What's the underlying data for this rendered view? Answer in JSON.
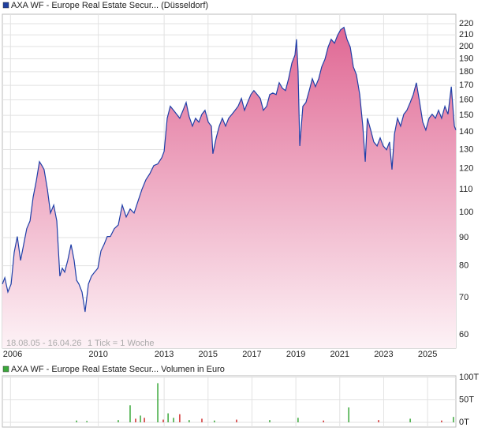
{
  "chart_data": [
    {
      "type": "line",
      "title": "AXA WF - Europe Real Estate Secur... (Düsseldorf)",
      "legend_color": "#1f3f9f",
      "date_range": "18.08.05 - 16.04.26",
      "tick_info": "1 Tick = 1 Woche",
      "log_scale": true,
      "grid": true,
      "color": "#1f3fa8",
      "fill_top": "#e06894",
      "fill_bottom": "#fdf2f6",
      "xlim": [
        2005.63,
        2026.29
      ],
      "xticks": [
        {
          "value": 2006,
          "label": "2006"
        },
        {
          "value": 2010,
          "label": "2010"
        },
        {
          "value": 2013,
          "label": "2013"
        },
        {
          "value": 2015,
          "label": "2015"
        },
        {
          "value": 2017,
          "label": "2017"
        },
        {
          "value": 2019,
          "label": "2019"
        },
        {
          "value": 2021,
          "label": "2021"
        },
        {
          "value": 2023,
          "label": "2023"
        },
        {
          "value": 2025,
          "label": "2025"
        }
      ],
      "ylim": [
        56.7,
        228.9
      ],
      "yticks": [
        60,
        70,
        80,
        90,
        100,
        110,
        120,
        130,
        140,
        150,
        160,
        170,
        180,
        190,
        200,
        210,
        220
      ],
      "x": [
        2005.63,
        2005.74,
        2005.88,
        2006.03,
        2006.17,
        2006.31,
        2006.46,
        2006.6,
        2006.74,
        2006.89,
        2007.03,
        2007.17,
        2007.32,
        2007.43,
        2007.53,
        2007.68,
        2007.82,
        2007.97,
        2008.11,
        2008.25,
        2008.36,
        2008.47,
        2008.61,
        2008.76,
        2008.9,
        2009.01,
        2009.12,
        2009.26,
        2009.4,
        2009.55,
        2009.69,
        2009.83,
        2009.98,
        2010.12,
        2010.26,
        2010.41,
        2010.55,
        2010.73,
        2010.91,
        2011.09,
        2011.27,
        2011.45,
        2011.63,
        2011.81,
        2011.99,
        2012.17,
        2012.35,
        2012.53,
        2012.71,
        2012.89,
        2013.0,
        2013.14,
        2013.28,
        2013.43,
        2013.57,
        2013.71,
        2013.86,
        2014.0,
        2014.14,
        2014.29,
        2014.43,
        2014.58,
        2014.72,
        2014.86,
        2015.01,
        2015.15,
        2015.22,
        2015.37,
        2015.51,
        2015.65,
        2015.8,
        2015.94,
        2016.09,
        2016.23,
        2016.37,
        2016.52,
        2016.66,
        2016.8,
        2016.95,
        2017.09,
        2017.24,
        2017.38,
        2017.52,
        2017.67,
        2017.81,
        2017.95,
        2018.1,
        2018.24,
        2018.39,
        2018.53,
        2018.67,
        2018.82,
        2018.96,
        2019.03,
        2019.1,
        2019.18,
        2019.32,
        2019.46,
        2019.61,
        2019.75,
        2019.89,
        2020.04,
        2020.18,
        2020.33,
        2020.47,
        2020.61,
        2020.76,
        2020.9,
        2021.04,
        2021.19,
        2021.33,
        2021.48,
        2021.62,
        2021.76,
        2021.91,
        2022.05,
        2022.16,
        2022.26,
        2022.41,
        2022.55,
        2022.7,
        2022.84,
        2022.98,
        2023.13,
        2023.27,
        2023.38,
        2023.49,
        2023.63,
        2023.77,
        2023.92,
        2024.06,
        2024.21,
        2024.35,
        2024.49,
        2024.64,
        2024.78,
        2024.92,
        2025.07,
        2025.21,
        2025.36,
        2025.5,
        2025.64,
        2025.79,
        2025.93,
        2026.08,
        2026.22,
        2026.29
      ],
      "values": [
        74.1,
        76.1,
        71.7,
        74.1,
        84.6,
        90.4,
        81.8,
        87.4,
        93.4,
        96.5,
        106.5,
        113.8,
        123.6,
        121.6,
        119.6,
        110.1,
        99.7,
        103.1,
        96.5,
        76.6,
        79.2,
        77.9,
        81.8,
        87.4,
        81.8,
        75.3,
        74.1,
        71.7,
        66.0,
        74.1,
        76.6,
        77.9,
        79.2,
        85.1,
        87.4,
        90.4,
        90.4,
        93.4,
        94.9,
        103.1,
        98.1,
        101.4,
        99.7,
        104.8,
        110.1,
        114.6,
        117.6,
        121.6,
        122.4,
        125.7,
        129.0,
        148.2,
        155.8,
        153.2,
        150.7,
        148.2,
        153.2,
        158.3,
        149.2,
        143.4,
        148.2,
        145.8,
        150.7,
        153.2,
        145.8,
        143.4,
        127.8,
        136.5,
        143.4,
        148.2,
        143.4,
        148.2,
        150.7,
        153.2,
        155.8,
        161.0,
        153.2,
        158.3,
        163.6,
        166.4,
        163.6,
        161.0,
        153.2,
        155.8,
        163.6,
        164.7,
        163.6,
        171.9,
        168.0,
        166.4,
        174.8,
        186.7,
        193.0,
        206.1,
        180.7,
        132.0,
        155.8,
        158.3,
        166.4,
        174.8,
        169.1,
        174.8,
        183.7,
        189.8,
        199.5,
        206.1,
        202.8,
        209.6,
        214.5,
        216.7,
        206.1,
        199.5,
        183.7,
        177.7,
        163.6,
        143.4,
        123.6,
        148.2,
        141.1,
        134.2,
        132.0,
        136.5,
        132.0,
        129.9,
        134.2,
        119.6,
        138.7,
        148.2,
        143.4,
        150.7,
        153.2,
        158.3,
        163.6,
        171.9,
        158.3,
        145.8,
        141.1,
        148.2,
        150.7,
        148.2,
        153.2,
        148.2,
        155.8,
        150.7,
        169.1,
        143.4,
        141.1
      ]
    },
    {
      "type": "bar",
      "title": "AXA WF - Europe Real Estate Secur... Volumen in Euro",
      "legend_color": "#3aa83a",
      "xlim": [
        2005.63,
        2026.29
      ],
      "ylim": [
        0,
        100
      ],
      "yticks": [
        {
          "value": 0,
          "label": "0T"
        },
        {
          "value": 50,
          "label": "50T"
        },
        {
          "value": 100,
          "label": "100T"
        }
      ],
      "x": [
        2009.01,
        2009.48,
        2010.91,
        2011.45,
        2011.7,
        2011.92,
        2012.1,
        2012.71,
        2012.96,
        2013.18,
        2013.43,
        2013.71,
        2014.14,
        2014.72,
        2015.29,
        2016.3,
        2017.81,
        2019.1,
        2020.26,
        2021.41,
        2022.77,
        2024.21,
        2025.64,
        2026.18
      ],
      "values": [
        4,
        3,
        5,
        38,
        8,
        15,
        10,
        87,
        6,
        20,
        10,
        18,
        5,
        8,
        4,
        6,
        5,
        10,
        4,
        33,
        5,
        8,
        4,
        12
      ],
      "colors": [
        "#3aa83a",
        "#3aa83a",
        "#3aa83a",
        "#3aa83a",
        "#d03030",
        "#3aa83a",
        "#d03030",
        "#3aa83a",
        "#d03030",
        "#3aa83a",
        "#3aa83a",
        "#d03030",
        "#3aa83a",
        "#d03030",
        "#3aa83a",
        "#d03030",
        "#3aa83a",
        "#3aa83a",
        "#d03030",
        "#3aa83a",
        "#d03030",
        "#3aa83a",
        "#d03030",
        "#3aa83a"
      ]
    }
  ]
}
